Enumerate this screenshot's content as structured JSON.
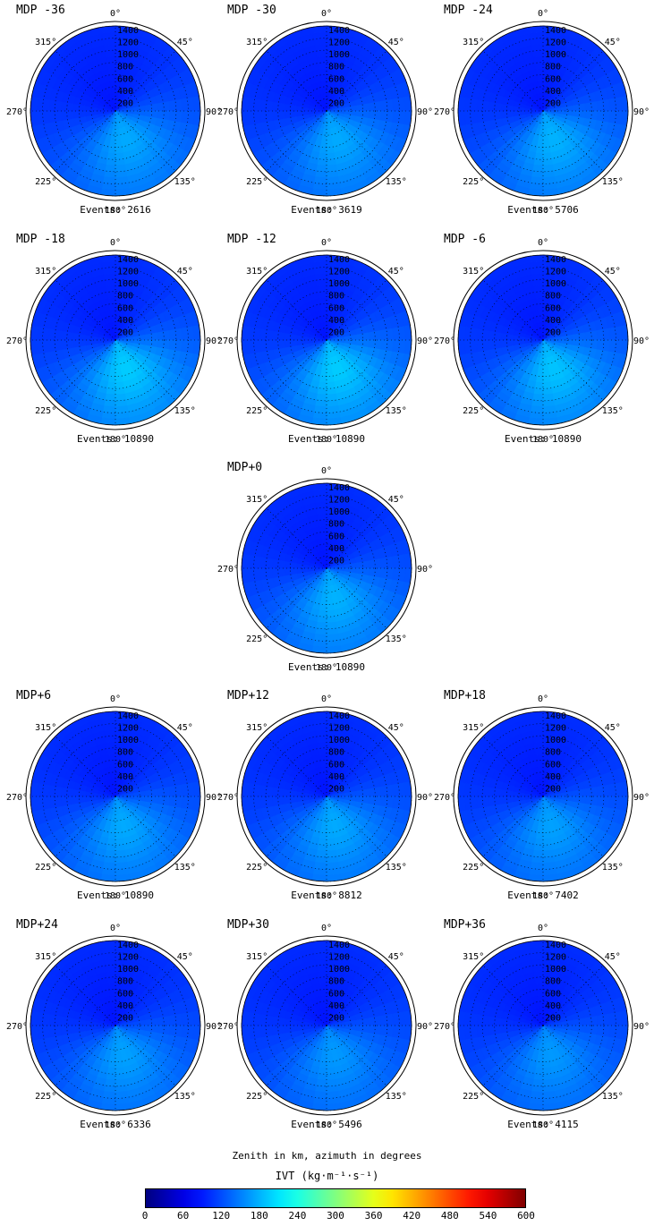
{
  "chart_data": {
    "type": "polar-heatmap",
    "radial_axis": {
      "ticks": [
        200,
        400,
        600,
        800,
        1000,
        1200,
        1400
      ],
      "units": "km"
    },
    "angular_axis": {
      "ticks": [
        "0°",
        "45°",
        "90°",
        "135°",
        "180°",
        "225°",
        "270°",
        "315°"
      ]
    },
    "caption": "Zenith in km, azimuth in degrees",
    "colorbar": {
      "label": "IVT (kg·m⁻¹·s⁻¹)",
      "range": [
        0,
        600
      ],
      "ticks": [
        "0",
        "60",
        "120",
        "180",
        "240",
        "300",
        "360",
        "420",
        "480",
        "540",
        "600"
      ],
      "colormap": "jet"
    },
    "panels": [
      {
        "title": "MDP -36",
        "events": "Events: 2616",
        "peak_ivt": 175,
        "peak_azimuth": 160
      },
      {
        "title": "MDP -30",
        "events": "Events: 3619",
        "peak_ivt": 175,
        "peak_azimuth": 160
      },
      {
        "title": "MDP -24",
        "events": "Events: 5706",
        "peak_ivt": 180,
        "peak_azimuth": 160
      },
      {
        "title": "MDP -18",
        "events": "Events: 10890",
        "peak_ivt": 195,
        "peak_azimuth": 160
      },
      {
        "title": "MDP -12",
        "events": "Events: 10890",
        "peak_ivt": 195,
        "peak_azimuth": 160
      },
      {
        "title": "MDP -6",
        "events": "Events: 10890",
        "peak_ivt": 190,
        "peak_azimuth": 160
      },
      {
        "title": "MDP+0",
        "events": "Events: 10890",
        "peak_ivt": 180,
        "peak_azimuth": 165
      },
      {
        "title": "MDP+6",
        "events": "Events: 10890",
        "peak_ivt": 175,
        "peak_azimuth": 165
      },
      {
        "title": "MDP+12",
        "events": "Events: 8812",
        "peak_ivt": 175,
        "peak_azimuth": 165
      },
      {
        "title": "MDP+18",
        "events": "Events: 7402",
        "peak_ivt": 170,
        "peak_azimuth": 165
      },
      {
        "title": "MDP+24",
        "events": "Events: 6336",
        "peak_ivt": 170,
        "peak_azimuth": 165
      },
      {
        "title": "MDP+30",
        "events": "Events: 5496",
        "peak_ivt": 165,
        "peak_azimuth": 165
      },
      {
        "title": "MDP+36",
        "events": "Events: 4115",
        "peak_ivt": 165,
        "peak_azimuth": 165
      }
    ]
  }
}
